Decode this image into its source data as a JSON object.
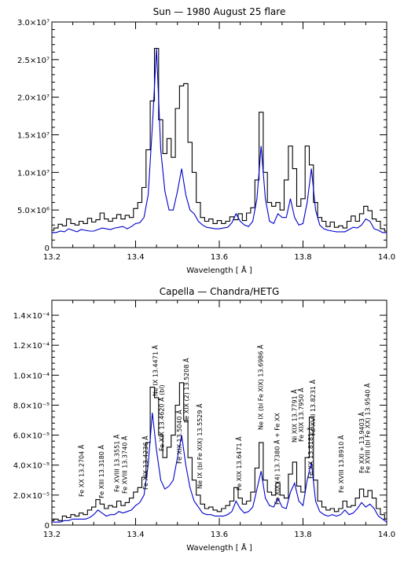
{
  "chart_data": [
    {
      "type": "line",
      "title": "Sun — 1980 August 25 flare",
      "xlabel": "Wavelength [ Å ]",
      "ylabel": "",
      "xlim": [
        13.2,
        14.0
      ],
      "ylim": [
        0,
        30000000
      ],
      "x_ticks": [
        {
          "value": 13.2,
          "label": "13.2"
        },
        {
          "value": 13.4,
          "label": "13.4"
        },
        {
          "value": 13.6,
          "label": "13.6"
        },
        {
          "value": 13.8,
          "label": "13.8"
        },
        {
          "value": 14.0,
          "label": "14.0"
        }
      ],
      "y_ticks": [
        {
          "value": 0,
          "label": "0"
        },
        {
          "value": 5000000,
          "label": "5.0×10⁶"
        },
        {
          "value": 10000000,
          "label": "1.0×10⁷"
        },
        {
          "value": 15000000,
          "label": "1.5×10⁷"
        },
        {
          "value": 20000000,
          "label": "2.0×10⁷"
        },
        {
          "value": 25000000,
          "label": "2.5×10⁷"
        },
        {
          "value": 30000000,
          "label": "3.0×10⁷"
        }
      ],
      "grid": false,
      "series": [
        {
          "color": "#000000",
          "style": "steps",
          "x": [
            13.2,
            13.21,
            13.22,
            13.23,
            13.24,
            13.25,
            13.26,
            13.27,
            13.28,
            13.29,
            13.3,
            13.31,
            13.32,
            13.33,
            13.34,
            13.35,
            13.36,
            13.37,
            13.38,
            13.39,
            13.4,
            13.41,
            13.42,
            13.43,
            13.44,
            13.45,
            13.46,
            13.47,
            13.48,
            13.49,
            13.5,
            13.51,
            13.52,
            13.53,
            13.54,
            13.55,
            13.56,
            13.57,
            13.58,
            13.59,
            13.6,
            13.61,
            13.62,
            13.63,
            13.64,
            13.65,
            13.66,
            13.67,
            13.68,
            13.69,
            13.7,
            13.71,
            13.72,
            13.73,
            13.74,
            13.75,
            13.76,
            13.77,
            13.78,
            13.79,
            13.8,
            13.81,
            13.82,
            13.83,
            13.84,
            13.85,
            13.86,
            13.87,
            13.88,
            13.89,
            13.9,
            13.91,
            13.92,
            13.93,
            13.94,
            13.95,
            13.96,
            13.97,
            13.98,
            13.99,
            14.0
          ],
          "y": [
            2300000,
            2600000,
            3100000,
            2900000,
            3800000,
            3200000,
            3000000,
            3500000,
            3200000,
            3900000,
            3400000,
            3700000,
            4600000,
            3800000,
            3500000,
            3900000,
            4400000,
            3800000,
            4300000,
            4000000,
            5200000,
            6000000,
            8000000,
            13000000,
            19500000,
            26500000,
            17000000,
            12500000,
            14500000,
            12000000,
            18500000,
            21500000,
            21800000,
            14000000,
            10000000,
            6000000,
            4000000,
            3500000,
            3800000,
            3200000,
            3600000,
            3200000,
            3500000,
            4100000,
            3700000,
            4500000,
            3600000,
            4600000,
            5300000,
            9000000,
            18000000,
            10000000,
            6000000,
            5500000,
            6000000,
            5000000,
            9000000,
            13500000,
            10500000,
            5500000,
            6500000,
            13500000,
            11000000,
            6000000,
            4000000,
            3500000,
            2800000,
            3400000,
            2700000,
            2900000,
            2600000,
            3500000,
            4200000,
            3500000,
            4500000,
            5500000,
            4900000,
            3800000,
            3500000,
            2500000,
            2200000
          ]
        },
        {
          "color": "#0000cc",
          "style": "line",
          "x": [
            13.2,
            13.21,
            13.22,
            13.23,
            13.24,
            13.25,
            13.26,
            13.27,
            13.28,
            13.29,
            13.3,
            13.31,
            13.32,
            13.33,
            13.34,
            13.35,
            13.36,
            13.37,
            13.38,
            13.39,
            13.4,
            13.41,
            13.42,
            13.43,
            13.44,
            13.45,
            13.46,
            13.47,
            13.48,
            13.49,
            13.5,
            13.51,
            13.52,
            13.53,
            13.54,
            13.55,
            13.56,
            13.57,
            13.58,
            13.59,
            13.6,
            13.61,
            13.62,
            13.63,
            13.64,
            13.65,
            13.66,
            13.67,
            13.68,
            13.69,
            13.7,
            13.71,
            13.72,
            13.73,
            13.74,
            13.75,
            13.76,
            13.77,
            13.78,
            13.79,
            13.8,
            13.81,
            13.82,
            13.83,
            13.84,
            13.85,
            13.86,
            13.87,
            13.88,
            13.89,
            13.9,
            13.91,
            13.92,
            13.93,
            13.94,
            13.95,
            13.96,
            13.97,
            13.98,
            13.99,
            14.0
          ],
          "y": [
            2000000,
            2000000,
            2200000,
            2100000,
            2500000,
            2300000,
            2100000,
            2400000,
            2300000,
            2200000,
            2200000,
            2400000,
            2600000,
            2500000,
            2400000,
            2600000,
            2700000,
            2800000,
            2500000,
            2800000,
            3200000,
            3300000,
            4000000,
            7000000,
            16000000,
            26500000,
            13000000,
            7500000,
            5000000,
            5000000,
            7500000,
            10500000,
            7000000,
            5000000,
            4500000,
            3500000,
            3000000,
            2700000,
            2600000,
            2500000,
            2500000,
            2600000,
            2700000,
            3300000,
            4500000,
            3500000,
            3000000,
            2800000,
            3500000,
            6500000,
            13500000,
            6500000,
            3500000,
            3200000,
            4500000,
            4000000,
            4000000,
            6500000,
            4000000,
            3000000,
            3200000,
            6000000,
            10500000,
            5000000,
            3000000,
            2500000,
            2300000,
            2200000,
            2100000,
            2100000,
            2100000,
            2400000,
            2700000,
            2600000,
            3000000,
            3800000,
            3500000,
            2500000,
            2300000,
            2000000,
            2000000
          ]
        }
      ]
    },
    {
      "type": "line",
      "title": "Capella — Chandra/HETG",
      "xlabel": "Wavelength [ Å ]",
      "ylabel": "",
      "xlim": [
        13.2,
        14.0
      ],
      "ylim": [
        0,
        0.00015
      ],
      "x_ticks": [
        {
          "value": 13.2,
          "label": "13.2"
        },
        {
          "value": 13.4,
          "label": "13.4"
        },
        {
          "value": 13.6,
          "label": "13.6"
        },
        {
          "value": 13.8,
          "label": "13.8"
        },
        {
          "value": 14.0,
          "label": "14.0"
        }
      ],
      "y_ticks": [
        {
          "value": 0,
          "label": "0"
        },
        {
          "value": 2e-05,
          "label": "2.0×10⁻⁵"
        },
        {
          "value": 4e-05,
          "label": "4.0×10⁻⁵"
        },
        {
          "value": 6e-05,
          "label": "6.0×10⁻⁵"
        },
        {
          "value": 8e-05,
          "label": "8.0×10⁻⁵"
        },
        {
          "value": 0.0001,
          "label": "1.0×10⁻⁴"
        },
        {
          "value": 0.00012,
          "label": "1.2×10⁻⁴"
        },
        {
          "value": 0.00014,
          "label": "1.4×10⁻⁴"
        }
      ],
      "grid": false,
      "series": [
        {
          "color": "#000000",
          "style": "steps",
          "x": [
            13.2,
            13.21,
            13.22,
            13.23,
            13.24,
            13.25,
            13.26,
            13.27,
            13.28,
            13.29,
            13.3,
            13.31,
            13.32,
            13.33,
            13.34,
            13.35,
            13.36,
            13.37,
            13.38,
            13.39,
            13.4,
            13.41,
            13.42,
            13.43,
            13.44,
            13.45,
            13.46,
            13.47,
            13.48,
            13.49,
            13.5,
            13.51,
            13.52,
            13.53,
            13.54,
            13.55,
            13.56,
            13.57,
            13.58,
            13.59,
            13.6,
            13.61,
            13.62,
            13.63,
            13.64,
            13.65,
            13.66,
            13.67,
            13.68,
            13.69,
            13.7,
            13.71,
            13.72,
            13.73,
            13.74,
            13.75,
            13.76,
            13.77,
            13.78,
            13.79,
            13.8,
            13.81,
            13.82,
            13.83,
            13.84,
            13.85,
            13.86,
            13.87,
            13.88,
            13.89,
            13.9,
            13.91,
            13.92,
            13.93,
            13.94,
            13.95,
            13.96,
            13.97,
            13.98,
            13.99,
            14.0
          ],
          "y": [
            3e-06,
            4e-06,
            3e-06,
            6e-06,
            5e-06,
            7e-06,
            6e-06,
            8e-06,
            7e-06,
            1e-05,
            1.2e-05,
            1.7e-05,
            1.4e-05,
            1.1e-05,
            1.3e-05,
            1.2e-05,
            1.6e-05,
            1.3e-05,
            1.5e-05,
            1.8e-05,
            2.2e-05,
            2.5e-05,
            3.2e-05,
            5.5e-05,
            9.2e-05,
            8.5e-05,
            6e-05,
            4.5e-05,
            5.2e-05,
            6e-05,
            8e-05,
            9.5e-05,
            7e-05,
            4.5e-05,
            3e-05,
            2e-05,
            1.4e-05,
            1.1e-05,
            1.2e-05,
            1e-05,
            9e-06,
            1.1e-05,
            1.3e-05,
            1.6e-05,
            2.5e-05,
            1.8e-05,
            1.4e-05,
            1.6e-05,
            2.2e-05,
            3.8e-05,
            5.5e-05,
            3e-05,
            2.2e-05,
            2e-05,
            2.8e-05,
            2e-05,
            1.8e-05,
            3.4e-05,
            4.2e-05,
            2.6e-05,
            2.2e-05,
            4.5e-05,
            7.2e-05,
            3e-05,
            1.6e-05,
            1.2e-05,
            1e-05,
            1.1e-05,
            9e-06,
            1.1e-05,
            1.6e-05,
            1.2e-05,
            1.3e-05,
            1.8e-05,
            2.4e-05,
            1.9e-05,
            2.3e-05,
            1.8e-05,
            1.1e-05,
            7e-06,
            4e-06
          ]
        },
        {
          "color": "#0000cc",
          "style": "line",
          "x": [
            13.2,
            13.21,
            13.22,
            13.23,
            13.24,
            13.25,
            13.26,
            13.27,
            13.28,
            13.29,
            13.3,
            13.31,
            13.32,
            13.33,
            13.34,
            13.35,
            13.36,
            13.37,
            13.38,
            13.39,
            13.4,
            13.41,
            13.42,
            13.43,
            13.44,
            13.45,
            13.46,
            13.47,
            13.48,
            13.49,
            13.5,
            13.51,
            13.52,
            13.53,
            13.54,
            13.55,
            13.56,
            13.57,
            13.58,
            13.59,
            13.6,
            13.61,
            13.62,
            13.63,
            13.64,
            13.65,
            13.66,
            13.67,
            13.68,
            13.69,
            13.7,
            13.71,
            13.72,
            13.73,
            13.74,
            13.75,
            13.76,
            13.77,
            13.78,
            13.79,
            13.8,
            13.81,
            13.82,
            13.83,
            13.84,
            13.85,
            13.86,
            13.87,
            13.88,
            13.89,
            13.9,
            13.91,
            13.92,
            13.93,
            13.94,
            13.95,
            13.96,
            13.97,
            13.98,
            13.99,
            14.0
          ],
          "y": [
            2e-06,
            2e-06,
            2e-06,
            3e-06,
            3e-06,
            4e-06,
            4e-06,
            4e-06,
            4e-06,
            5e-06,
            7e-06,
            1e-05,
            8e-06,
            6e-06,
            7e-06,
            7e-06,
            9e-06,
            8e-06,
            9e-06,
            1e-05,
            1.3e-05,
            1.5e-05,
            2e-05,
            4e-05,
            7.5e-05,
            5e-05,
            3e-05,
            2.4e-05,
            2.6e-05,
            3e-05,
            4.5e-05,
            6e-05,
            4e-05,
            2.5e-05,
            1.6e-05,
            1.2e-05,
            8e-06,
            7e-06,
            7e-06,
            6e-06,
            6e-06,
            6e-06,
            7e-06,
            9e-06,
            1.6e-05,
            1.1e-05,
            8e-06,
            9e-06,
            1.2e-05,
            2.4e-05,
            3.6e-05,
            1.8e-05,
            1.3e-05,
            1.2e-05,
            1.8e-05,
            1.2e-05,
            1.1e-05,
            2.2e-05,
            2.8e-05,
            1.6e-05,
            1.3e-05,
            3e-05,
            4.2e-05,
            1.6e-05,
            9e-06,
            7e-06,
            6e-06,
            7e-06,
            6e-06,
            7e-06,
            1e-05,
            7e-06,
            8e-06,
            1.1e-05,
            1.5e-05,
            1.2e-05,
            1.4e-05,
            1.1e-05,
            6e-06,
            4e-06,
            2e-06
          ]
        }
      ],
      "annotations": [
        {
          "text": "Fe XX 13.2704 Å",
          "x": 13.2704
        },
        {
          "text": "Fe XIII 13.3180 Å",
          "x": 13.318
        },
        {
          "text": "Fe XVIII 13.3551 Å",
          "x": 13.3551
        },
        {
          "text": "Fe XVIII 13.3740 Å",
          "x": 13.374
        },
        {
          "text": "Fe XIX 13.4236 Å",
          "x": 13.4236
        },
        {
          "text": "Ne IX 13.4471 Å",
          "x": 13.4471
        },
        {
          "text": "Fe XIX 13.4620 Å (bl)",
          "x": 13.462
        },
        {
          "text": "Fe XIX 13.5040 Å",
          "x": 13.504
        },
        {
          "text": "Fe XIX (2) 13.5208 Å",
          "x": 13.5208
        },
        {
          "text": "Ne IX (bl Fe XIX) 13.5529 Å",
          "x": 13.5529
        },
        {
          "text": "Fe XIX 13.6471 Å",
          "x": 13.6471
        },
        {
          "text": "Ne IX (bl Fe XIX) 13.6986 Å",
          "x": 13.6986
        },
        {
          "text": "Fe XIX (4) 13.7380 Å + Fe XX",
          "x": 13.738
        },
        {
          "text": "Ni XIX 13.7791 Å",
          "x": 13.7791
        },
        {
          "text": "Fe XIX 13.7950 Å",
          "x": 13.795
        },
        {
          "text": "Fe XX 13.8181 Å",
          "x": 13.8181
        },
        {
          "text": "Fe XVII 13.8231 Å",
          "x": 13.8231
        },
        {
          "text": "Fe XVIII 13.8910 Å",
          "x": 13.891
        },
        {
          "text": "Fe XXI + 13.9403 Å",
          "x": 13.9403
        },
        {
          "text": "Fe XVIII (bl Fe XX) 13.9540 Å",
          "x": 13.954
        }
      ]
    }
  ]
}
